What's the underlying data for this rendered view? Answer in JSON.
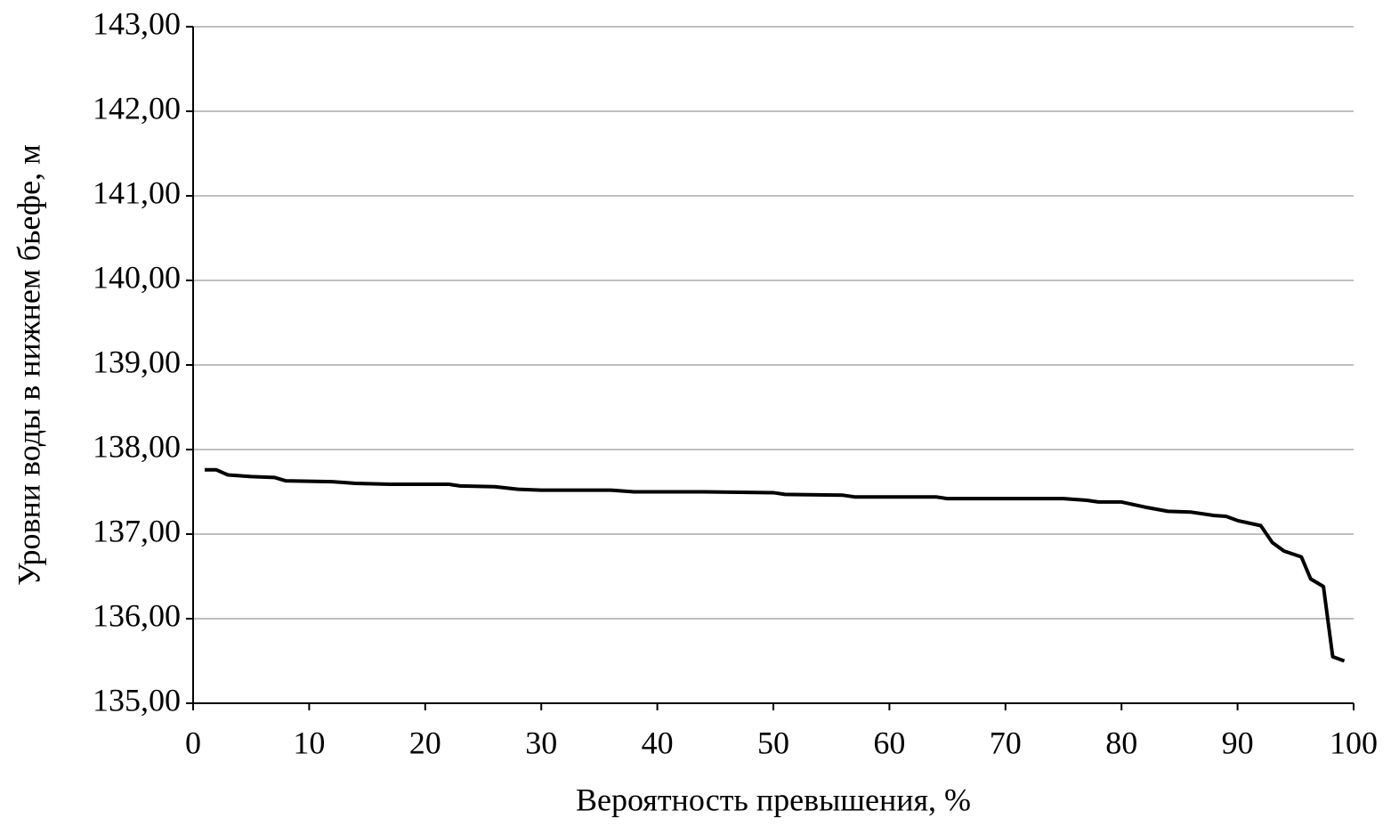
{
  "chart_data": {
    "type": "line",
    "x_label": "Вероятность превышения, %",
    "y_label": "Уровни воды в нижнем бьефе, м",
    "xlim": [
      0,
      100
    ],
    "xticks": [
      0,
      10,
      20,
      30,
      40,
      50,
      60,
      70,
      80,
      90,
      100
    ],
    "ylim": [
      135,
      143
    ],
    "yticks": [
      {
        "value": 135,
        "label": "135,00"
      },
      {
        "value": 136,
        "label": "136,00"
      },
      {
        "value": 137,
        "label": "137,00"
      },
      {
        "value": 138,
        "label": "138,00"
      },
      {
        "value": 139,
        "label": "139,00"
      },
      {
        "value": 140,
        "label": "140,00"
      },
      {
        "value": 141,
        "label": "141,00"
      },
      {
        "value": 142,
        "label": "142,00"
      },
      {
        "value": 143,
        "label": "143,00"
      }
    ],
    "grid": true,
    "series": [
      {
        "color": "#000000",
        "x": [
          1,
          2,
          3,
          5,
          7,
          8,
          12,
          14,
          17,
          22,
          23,
          26,
          28,
          30,
          36,
          38,
          44,
          50,
          51,
          56,
          57,
          64,
          65,
          75,
          77,
          78,
          80,
          82,
          84,
          86,
          88,
          89,
          90,
          92,
          93,
          94,
          95.5,
          96.3,
          97.4,
          98.2,
          99.2
        ],
        "values": [
          137.76,
          137.76,
          137.7,
          137.68,
          137.67,
          137.63,
          137.62,
          137.6,
          137.59,
          137.59,
          137.57,
          137.56,
          137.53,
          137.52,
          137.52,
          137.5,
          137.5,
          137.49,
          137.47,
          137.46,
          137.44,
          137.44,
          137.42,
          137.42,
          137.4,
          137.38,
          137.38,
          137.32,
          137.27,
          137.26,
          137.22,
          137.21,
          137.16,
          137.1,
          136.9,
          136.8,
          136.73,
          136.47,
          136.38,
          135.55,
          135.5
        ]
      }
    ]
  }
}
